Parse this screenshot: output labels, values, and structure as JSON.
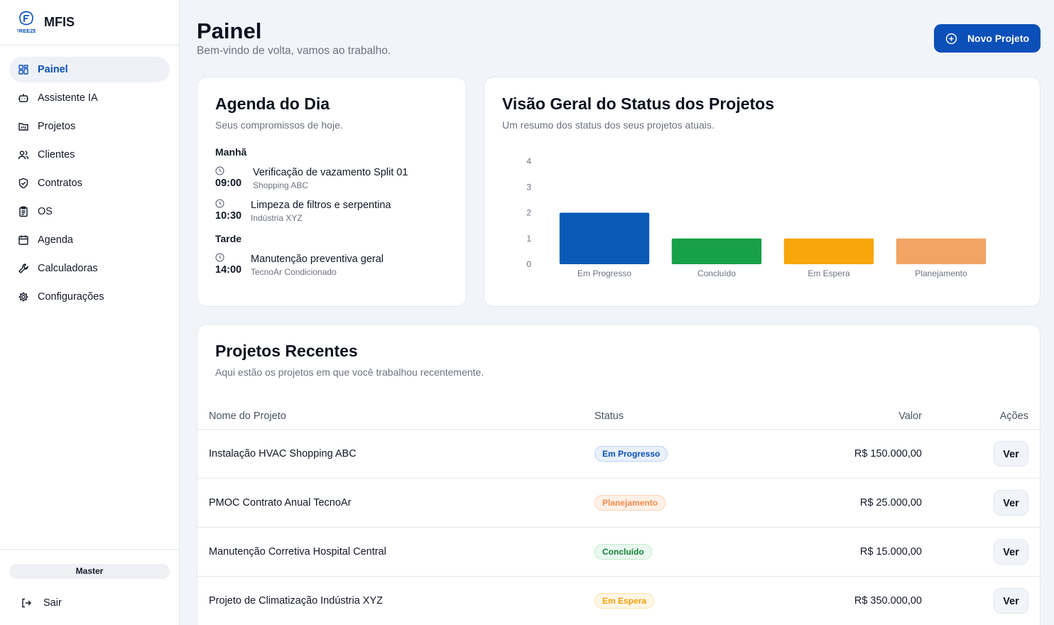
{
  "app": {
    "name": "MFIS",
    "logo_text": "FREEZE"
  },
  "sidebar": {
    "items": [
      {
        "label": "Painel",
        "icon": "dashboard-icon",
        "active": true
      },
      {
        "label": "Assistente IA",
        "icon": "bot-icon"
      },
      {
        "label": "Projetos",
        "icon": "folder-kanban-icon"
      },
      {
        "label": "Clientes",
        "icon": "users-icon"
      },
      {
        "label": "Contratos",
        "icon": "shield-check-icon"
      },
      {
        "label": "OS",
        "icon": "clipboard-icon"
      },
      {
        "label": "Agenda",
        "icon": "calendar-icon"
      },
      {
        "label": "Calculadoras",
        "icon": "wrench-icon"
      },
      {
        "label": "Configurações",
        "icon": "gear-icon"
      }
    ],
    "user_badge": "Master",
    "logout_label": "Sair"
  },
  "header": {
    "title": "Painel",
    "subtitle": "Bem-vindo de volta, vamos ao trabalho.",
    "new_project_label": "Novo Projeto"
  },
  "agenda": {
    "title": "Agenda do Dia",
    "subtitle": "Seus compromissos de hoje.",
    "periods": [
      {
        "label": "Manhã",
        "events": [
          {
            "time": "09:00",
            "title": "Verificação de vazamento Split 01",
            "place": "Shopping ABC"
          },
          {
            "time": "10:30",
            "title": "Limpeza de filtros e serpentina",
            "place": "Indústria XYZ"
          }
        ]
      },
      {
        "label": "Tarde",
        "events": [
          {
            "time": "14:00",
            "title": "Manutenção preventiva geral",
            "place": "TecnoAr Condicionado"
          }
        ]
      }
    ]
  },
  "status_overview": {
    "title": "Visão Geral do Status dos Projetos",
    "subtitle": "Um resumo dos status dos seus projetos atuais."
  },
  "chart_data": {
    "type": "bar",
    "categories": [
      "Em Progresso",
      "Concluído",
      "Em Espera",
      "Planejamento"
    ],
    "values": [
      2,
      1,
      1,
      1
    ],
    "colors": [
      "#0b5ab8",
      "#18a049",
      "#f7a60c",
      "#f2a463"
    ],
    "ylim": [
      0,
      4
    ],
    "yticks": [
      0,
      1,
      2,
      3,
      4
    ],
    "grid": false,
    "title": "",
    "xlabel": "",
    "ylabel": ""
  },
  "recent": {
    "title": "Projetos Recentes",
    "subtitle": "Aqui estão os projetos em que você trabalhou recentemente.",
    "columns": [
      "Nome do Projeto",
      "Status",
      "Valor",
      "Ações"
    ],
    "rows": [
      {
        "name": "Instalação HVAC Shopping ABC",
        "status": "Em Progresso",
        "value": "R$ 150.000,00",
        "action": "Ver"
      },
      {
        "name": "PMOC Contrato Anual TecnoAr",
        "status": "Planejamento",
        "value": "R$ 25.000,00",
        "action": "Ver"
      },
      {
        "name": "Manutenção Corretiva Hospital Central",
        "status": "Concluído",
        "value": "R$ 15.000,00",
        "action": "Ver"
      },
      {
        "name": "Projeto de Climatização Indústria XYZ",
        "status": "Em Espera",
        "value": "R$ 350.000,00",
        "action": "Ver"
      }
    ]
  },
  "status_styles": {
    "Em Progresso": {
      "color": "#0b4fb8",
      "bg": "#e9f0fb",
      "border": "#bcd1ef"
    },
    "Planejamento": {
      "color": "#f08a4b",
      "bg": "#fff1e7",
      "border": "#fbd3b8"
    },
    "Concluído": {
      "color": "#15803d",
      "bg": "#eaf8ef",
      "border": "#bfe8cd"
    },
    "Em Espera": {
      "color": "#f59e0b",
      "bg": "#fff7e6",
      "border": "#fbe0a9"
    }
  }
}
